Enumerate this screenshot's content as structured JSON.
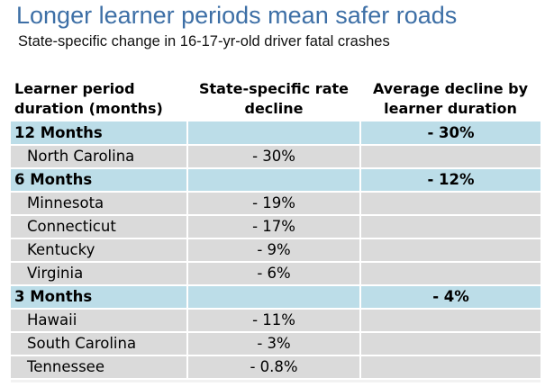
{
  "title": "Longer learner periods mean safer roads",
  "subtitle": "State-specific change in 16-17-yr-old driver fatal crashes",
  "chart_data": {
    "type": "table",
    "columns": [
      "Learner period duration (months)",
      "State-specific rate decline",
      "Average decline by learner duration"
    ],
    "groups": [
      {
        "label": "12 Months",
        "average": "- 30%",
        "states": [
          {
            "name": "North Carolina",
            "rate": "- 30%"
          }
        ]
      },
      {
        "label": "6 Months",
        "average": "- 12%",
        "states": [
          {
            "name": "Minnesota",
            "rate": "- 19%"
          },
          {
            "name": "Connecticut",
            "rate": "- 17%"
          },
          {
            "name": "Kentucky",
            "rate": "- 9%"
          },
          {
            "name": "Virginia",
            "rate": "- 6%"
          }
        ]
      },
      {
        "label": "3 Months",
        "average": "- 4%",
        "states": [
          {
            "name": "Hawaii",
            "rate": "- 11%"
          },
          {
            "name": "South Carolina",
            "rate": "- 3%"
          },
          {
            "name": "Tennessee",
            "rate": "- 0.8%"
          }
        ]
      }
    ]
  },
  "colors": {
    "title": "#3d6fa6",
    "group_row": "#bcdde8",
    "state_row": "#dadada"
  }
}
